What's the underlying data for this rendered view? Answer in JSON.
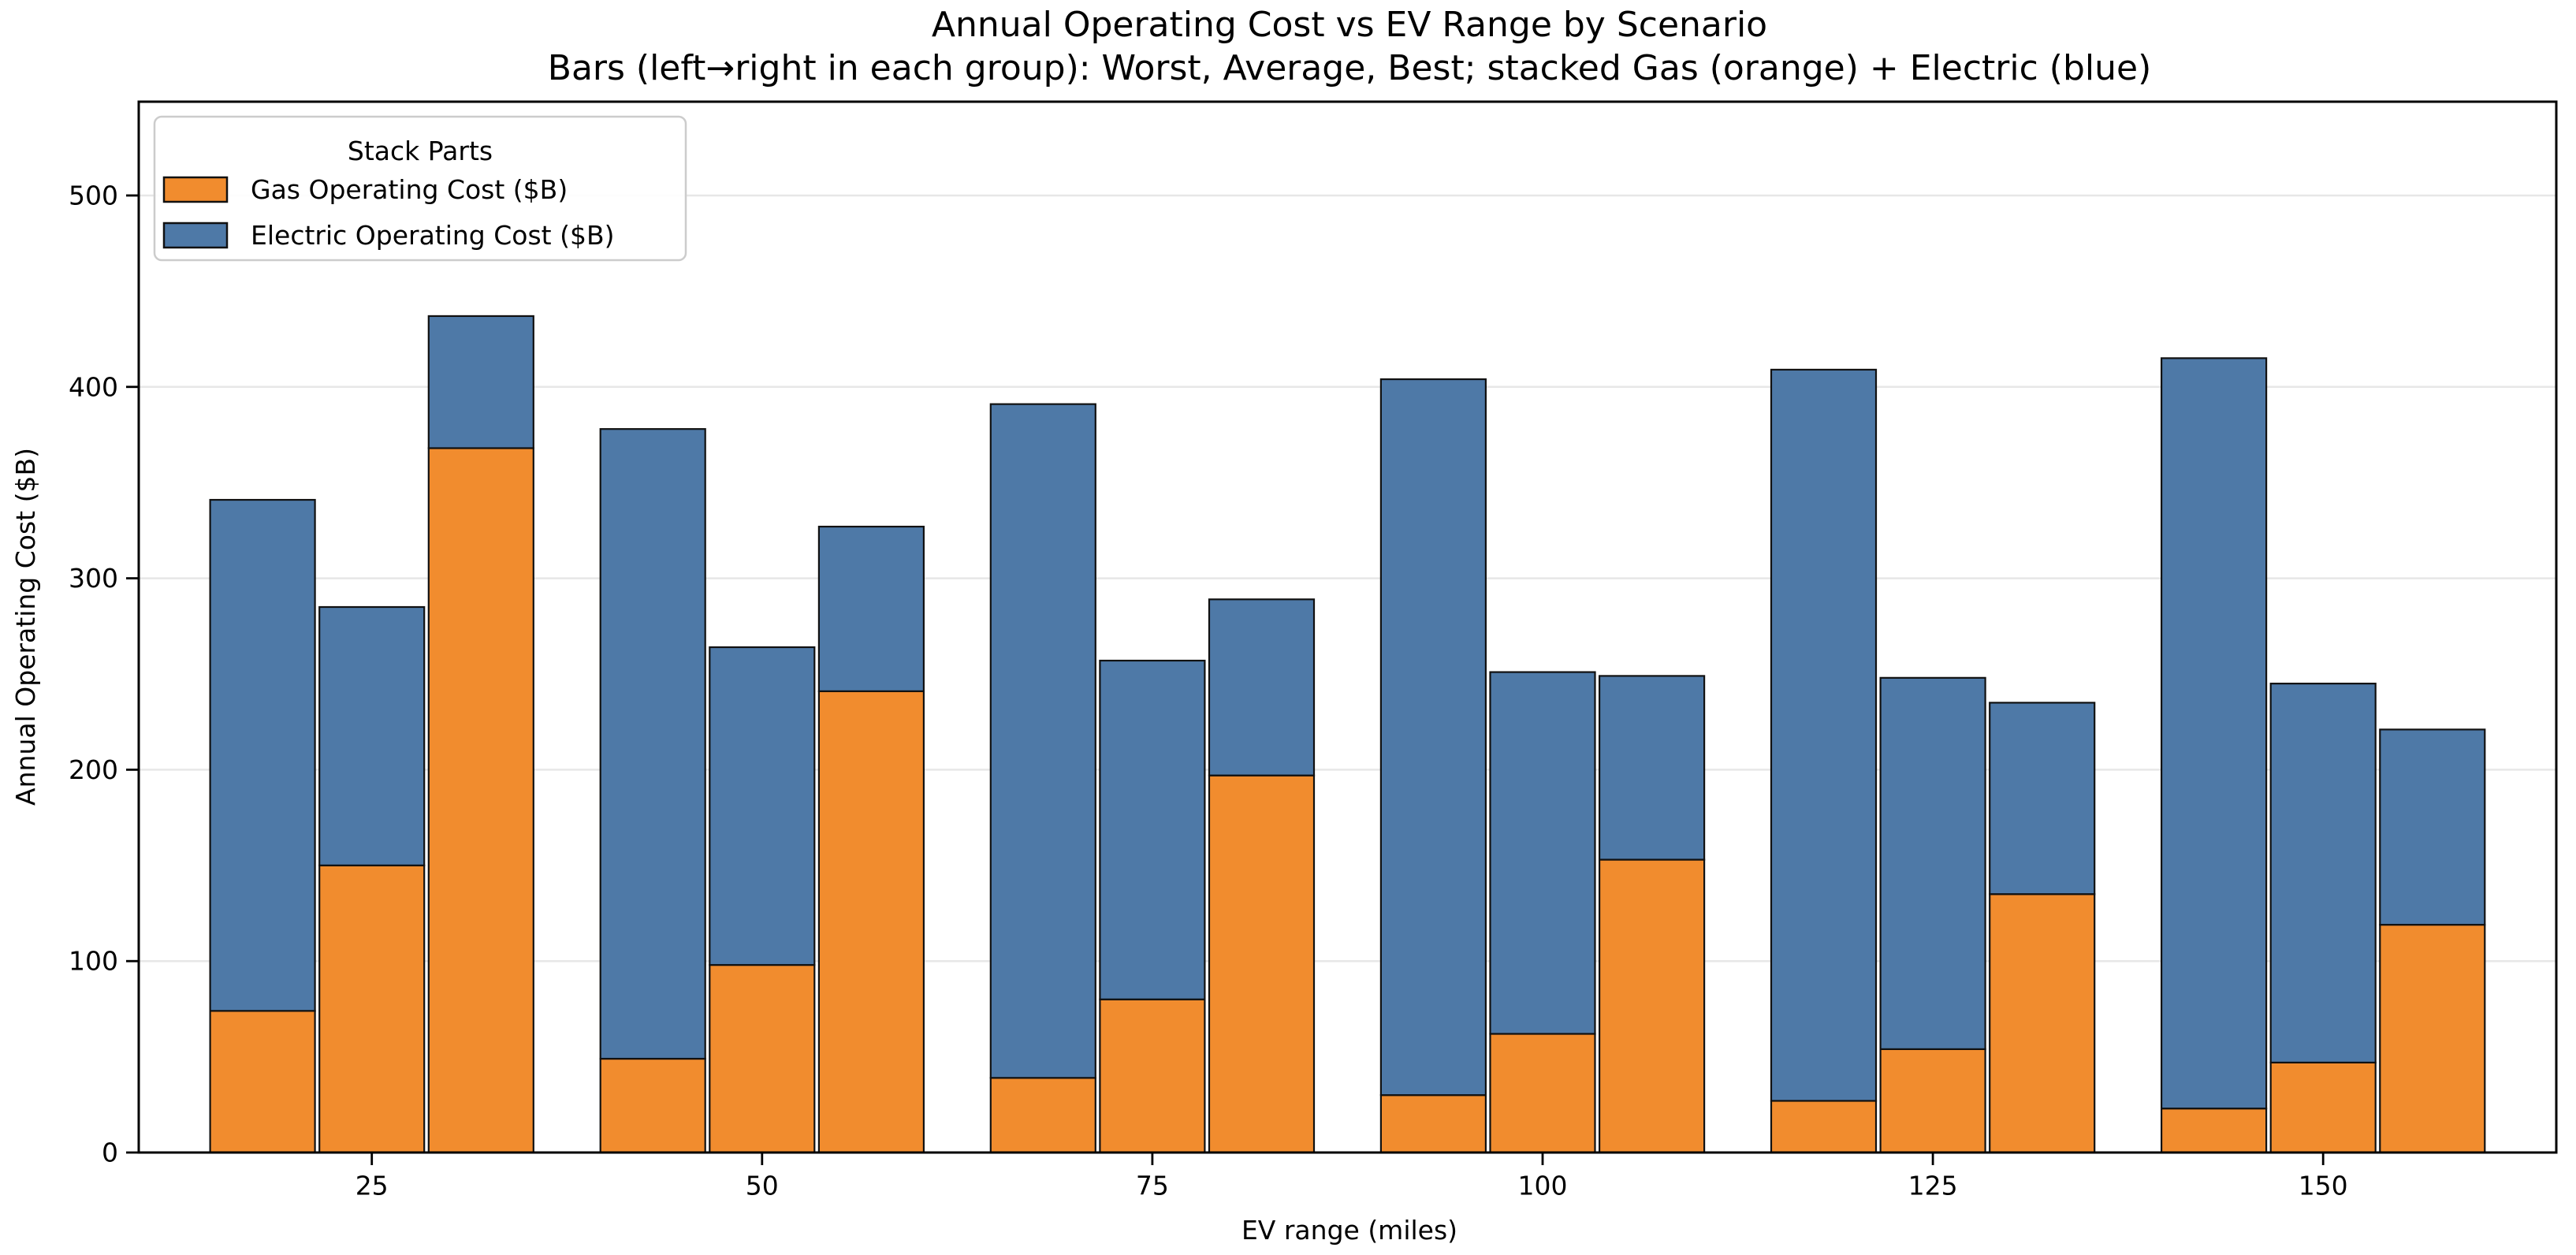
{
  "chart_data": {
    "type": "bar",
    "variant": "grouped-stacked",
    "title": "Annual Operating Cost vs EV Range by Scenario",
    "subtitle": "Bars (left→right in each group): Worst, Average, Best; stacked Gas (orange) + Electric (blue)",
    "xlabel": "EV range (miles)",
    "ylabel": "Annual Operating Cost ($B)",
    "categories": [
      25,
      50,
      75,
      100,
      125,
      150
    ],
    "scenario_order_within_group": [
      "Worst",
      "Average",
      "Best"
    ],
    "stack_order_bottom_to_top": [
      "Gas Operating Cost ($B)",
      "Electric Operating Cost ($B)"
    ],
    "series": [
      {
        "name": "Gas Operating Cost ($B)",
        "key": "gas",
        "color": "#f18c2e",
        "values_by_scenario": {
          "Worst": [
            74,
            49,
            39,
            30,
            27,
            23
          ],
          "Average": [
            150,
            98,
            80,
            62,
            54,
            47
          ],
          "Best": [
            368,
            241,
            197,
            153,
            135,
            119
          ]
        }
      },
      {
        "name": "Electric Operating Cost ($B)",
        "key": "electric",
        "color": "#4e79a7",
        "values_by_scenario": {
          "Worst": [
            267,
            329,
            352,
            374,
            382,
            392
          ],
          "Average": [
            135,
            166,
            177,
            189,
            194,
            198
          ],
          "Best": [
            69,
            86,
            92,
            96,
            100,
            102
          ]
        }
      }
    ],
    "stack_totals_by_scenario": {
      "Worst": [
        341,
        378,
        391,
        404,
        409,
        415
      ],
      "Average": [
        285,
        264,
        257,
        251,
        248,
        245
      ],
      "Best": [
        437,
        327,
        289,
        249,
        235,
        221
      ]
    },
    "ylim": [
      0,
      549
    ],
    "yticks": [
      0,
      100,
      200,
      300,
      400,
      500
    ],
    "grid": "horizontal",
    "legend": {
      "title": "Stack Parts",
      "position": "upper-left",
      "entries": [
        "Gas Operating Cost ($B)",
        "Electric Operating Cost ($B)"
      ]
    },
    "colors": {
      "gas": "#f18c2e",
      "electric": "#4e79a7",
      "bar_edge": "#111111",
      "gridline": "#e7e7e7",
      "spine": "#000000",
      "legend_border": "#cccccc",
      "background": "#ffffff"
    }
  }
}
